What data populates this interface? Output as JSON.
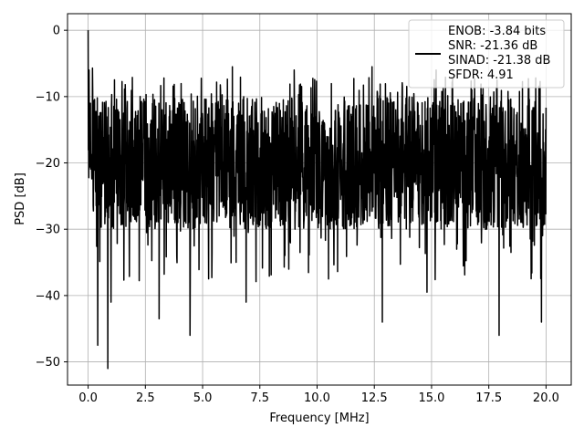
{
  "chart_data": {
    "type": "line",
    "title": "",
    "xlabel": "Frequency [MHz]",
    "ylabel": "PSD [dB]",
    "xlim": [
      -0.9,
      21.1
    ],
    "ylim": [
      -53.5,
      2.5
    ],
    "xticks": [
      0.0,
      2.5,
      5.0,
      7.5,
      10.0,
      12.5,
      15.0,
      17.5,
      20.0
    ],
    "xtick_labels": [
      "0.0",
      "2.5",
      "5.0",
      "7.5",
      "10.0",
      "12.5",
      "15.0",
      "17.5",
      "20.0"
    ],
    "yticks": [
      0,
      -10,
      -20,
      -30,
      -40,
      -50
    ],
    "ytick_labels": [
      "0",
      "−10",
      "−20",
      "−30",
      "−40",
      "−50"
    ],
    "grid": true,
    "legend_placement": "top-right",
    "legend_lines": [
      "ENOB: -3.84 bits",
      "SNR: -21.36 dB",
      "SINAD: -21.38 dB",
      "SFDR: 4.91"
    ],
    "series": [
      {
        "color": "#000000",
        "x_start": 0.0,
        "x_end": 20.0,
        "approx_points": 2000,
        "noise_floor_mean_db": -20,
        "upper_envelope_db": -10,
        "lower_envelope_db": -30,
        "peaks": [
          {
            "x": 0.0,
            "y": 0.0
          },
          {
            "x": 0.04,
            "y": -6.0
          },
          {
            "x": 0.1,
            "y": -11.0
          },
          {
            "x": 6.3,
            "y": -5.5
          },
          {
            "x": 9.0,
            "y": -6.0
          },
          {
            "x": 12.4,
            "y": -5.5
          },
          {
            "x": 15.2,
            "y": -6.0
          },
          {
            "x": 19.7,
            "y": -13.5
          }
        ],
        "dips": [
          {
            "x": 0.42,
            "y": -47.5
          },
          {
            "x": 0.86,
            "y": -51.0
          },
          {
            "x": 1.0,
            "y": -41.0
          },
          {
            "x": 3.1,
            "y": -43.5
          },
          {
            "x": 4.45,
            "y": -46.0
          },
          {
            "x": 6.9,
            "y": -41.0
          },
          {
            "x": 10.5,
            "y": -37.5
          },
          {
            "x": 12.85,
            "y": -44.0
          },
          {
            "x": 14.8,
            "y": -39.5
          },
          {
            "x": 17.95,
            "y": -46.0
          },
          {
            "x": 19.8,
            "y": -44.0
          }
        ]
      }
    ]
  }
}
